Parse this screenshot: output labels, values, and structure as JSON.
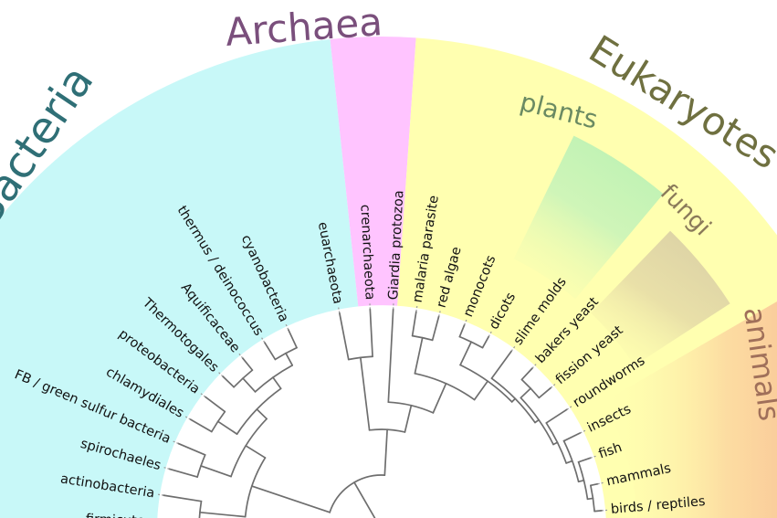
{
  "domains": {
    "bacteria": {
      "label": "Bacteria",
      "color": "#c8f8f8"
    },
    "archaea": {
      "label": "Archaea",
      "color": "#ffc4ff"
    },
    "eukaryotes": {
      "label": "Eukaryotes",
      "color": "#ffffb0"
    }
  },
  "clades": {
    "plants": {
      "label": "plants",
      "color": "#c2f5b8"
    },
    "fungi": {
      "label": "fungi",
      "color": "#e2d8a2"
    },
    "animals": {
      "label": "animals",
      "color": "#f8b894"
    }
  },
  "label_colors": {
    "archaea": "#7a4f7c",
    "eukaryotes": "#6f7040",
    "bacteria": "#2f6f76",
    "plants": "#6a8a62",
    "fungi": "#8a7a5a",
    "animals": "#a0705a"
  },
  "leaves": [
    "firmicutes",
    "actinobacteria",
    "spirochaeles",
    "FB / green sulfur bacteria",
    "chlamydiales",
    "proteobacteria",
    "Thermotogales",
    "Aquificaceae",
    "thermus / deinococcus",
    "cyanobacteria",
    "euarchaeota",
    "crenarchaeota",
    "Giardia protozoa",
    "malaria parasite",
    "red algae",
    "monocots",
    "dicots",
    "slime molds",
    "bakers yeast",
    "fission yeast",
    "roundworms",
    "insects",
    "fish",
    "mammals",
    "birds / reptiles"
  ]
}
